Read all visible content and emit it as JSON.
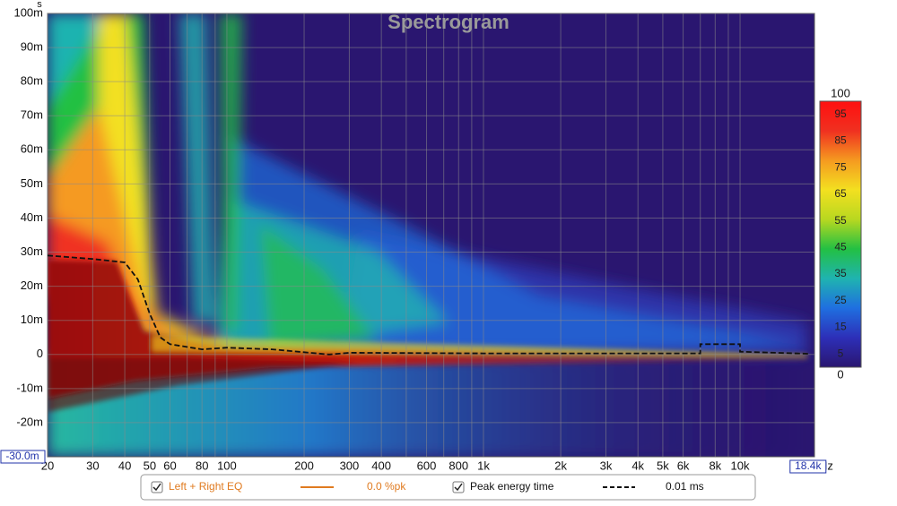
{
  "chart_data": {
    "type": "spectrogram",
    "title": "Spectrogram",
    "y_unit": "s",
    "x_unit": "Hz",
    "xscale": "log",
    "xlim": [
      20,
      19500
    ],
    "ylim": [
      -0.03,
      0.1
    ],
    "grid": true,
    "xticks": [
      20,
      30,
      40,
      50,
      60,
      80,
      100,
      200,
      300,
      400,
      600,
      800,
      {
        "value": 1000,
        "label": "1k"
      },
      {
        "value": 2000,
        "label": "2k"
      },
      {
        "value": 3000,
        "label": "3k"
      },
      {
        "value": 4000,
        "label": "4k"
      },
      {
        "value": 5000,
        "label": "5k"
      },
      {
        "value": 6000,
        "label": "6k"
      },
      {
        "value": 8000,
        "label": "8k"
      },
      {
        "value": 10000,
        "label": "10k"
      }
    ],
    "xminorticks": [
      70,
      90,
      500,
      700,
      900,
      7000,
      9000
    ],
    "yticks": [
      {
        "value": 0.1,
        "label": "100m"
      },
      {
        "value": 0.09,
        "label": "90m"
      },
      {
        "value": 0.08,
        "label": "80m"
      },
      {
        "value": 0.07,
        "label": "70m"
      },
      {
        "value": 0.06,
        "label": "60m"
      },
      {
        "value": 0.05,
        "label": "50m"
      },
      {
        "value": 0.04,
        "label": "40m"
      },
      {
        "value": 0.03,
        "label": "30m"
      },
      {
        "value": 0.02,
        "label": "20m"
      },
      {
        "value": 0.01,
        "label": "10m"
      },
      0,
      {
        "value": -0.01,
        "label": "-10m"
      },
      {
        "value": -0.02,
        "label": "-20m"
      }
    ],
    "y_range_box": {
      "value": -0.03,
      "label": "-30.0m"
    },
    "x_range_box": {
      "value": 18400,
      "label": "18.4k"
    },
    "colorbar": {
      "clim": [
        0,
        100
      ],
      "ticks": [
        100,
        95,
        85,
        75,
        65,
        55,
        45,
        35,
        25,
        15,
        5,
        0
      ],
      "colors": [
        "#2a1670",
        "#2d2fb8",
        "#1f6fe0",
        "#1fb3b0",
        "#23c043",
        "#b8d820",
        "#f3e020",
        "#f59a20",
        "#f03020",
        "#ff1010"
      ]
    },
    "series": [
      {
        "name": "Left + Right EQ",
        "color": "#e07b20",
        "readout": "0.0 %pk"
      },
      {
        "name": "Peak energy time",
        "color": "#111111",
        "dash": true,
        "readout": "0.01 ms",
        "x": [
          20,
          30,
          40,
          45,
          50,
          55,
          60,
          80,
          100,
          150,
          250,
          300,
          1000,
          5000,
          7000,
          7000,
          10000,
          10000,
          18400
        ],
        "values": [
          0.029,
          0.028,
          0.027,
          0.022,
          0.012,
          0.005,
          0.003,
          0.0015,
          0.002,
          0.0015,
          0.0,
          0.0005,
          0.0003,
          0.0003,
          0.0003,
          0.003,
          0.003,
          0.0008,
          0.0002
        ]
      }
    ]
  }
}
